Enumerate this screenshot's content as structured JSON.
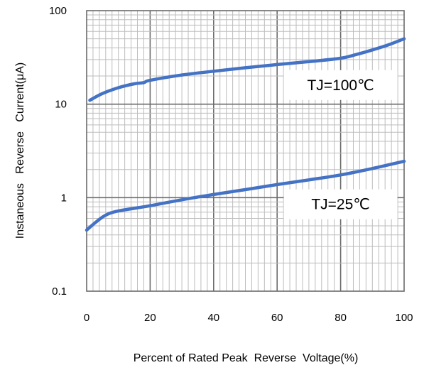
{
  "chart_data": {
    "type": "line",
    "xlabel": "Percent of Rated Peak  Reverse  Voltage(%)",
    "ylabel": "Instaneous   Reverse   Current(μA)",
    "xlim": [
      0,
      100
    ],
    "ylim": [
      0.1,
      100
    ],
    "yscale": "log",
    "grid": true,
    "x_ticks": [
      "0",
      "20",
      "40",
      "60",
      "80",
      "100"
    ],
    "y_ticks": [
      "0.1",
      "1",
      "10",
      "100"
    ],
    "series": [
      {
        "color": "#4472c4",
        "x": [
          1,
          5,
          10,
          15,
          18,
          20,
          30,
          40,
          50,
          60,
          70,
          80,
          85,
          90,
          95,
          100
        ],
        "y": [
          11,
          13,
          15,
          16.5,
          17,
          18,
          20.5,
          22.5,
          24.5,
          26.5,
          28.5,
          31,
          34,
          38,
          43,
          50
        ]
      },
      {
        "color": "#4472c4",
        "x": [
          0,
          3,
          6,
          10,
          20,
          30,
          40,
          50,
          60,
          70,
          80,
          90,
          100
        ],
        "y": [
          0.45,
          0.55,
          0.65,
          0.72,
          0.82,
          0.95,
          1.08,
          1.22,
          1.38,
          1.55,
          1.75,
          2.05,
          2.45
        ]
      }
    ],
    "annotations": [
      {
        "text": "TJ=100℃",
        "x": 80,
        "y": 16
      },
      {
        "text": "TJ=25℃",
        "x": 80,
        "y": 0.85
      }
    ]
  }
}
